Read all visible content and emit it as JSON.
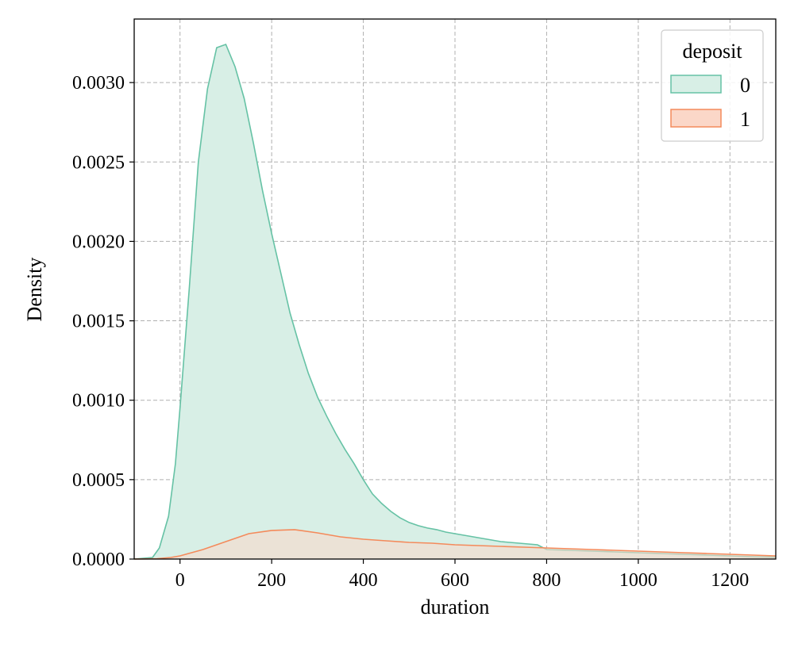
{
  "chart_data": {
    "type": "area",
    "title": "",
    "xlabel": "duration",
    "ylabel": "Density",
    "xlim": [
      -100,
      1300
    ],
    "ylim": [
      0,
      0.0034
    ],
    "xticks": [
      0,
      200,
      400,
      600,
      800,
      1000,
      1200
    ],
    "xtick_labels": [
      "0",
      "200",
      "400",
      "600",
      "800",
      "1000",
      "1200"
    ],
    "yticks": [
      0.0,
      0.0005,
      0.001,
      0.0015,
      0.002,
      0.0025,
      0.003
    ],
    "ytick_labels": [
      "0.0000",
      "0.0005",
      "0.0010",
      "0.0015",
      "0.0020",
      "0.0025",
      "0.0030"
    ],
    "grid": true,
    "legend": {
      "title": "deposit",
      "position": "top-right"
    },
    "series": [
      {
        "name": "0",
        "line_color": "#66c2a5",
        "fill_color": "#d8efe6",
        "points": [
          [
            -100,
            0.0
          ],
          [
            -60,
            1e-05
          ],
          [
            -45,
            7e-05
          ],
          [
            -25,
            0.00027
          ],
          [
            -10,
            0.0006
          ],
          [
            0,
            0.00095
          ],
          [
            20,
            0.0017
          ],
          [
            40,
            0.0025
          ],
          [
            60,
            0.00296
          ],
          [
            80,
            0.00322
          ],
          [
            100,
            0.00324
          ],
          [
            120,
            0.0031
          ],
          [
            140,
            0.0029
          ],
          [
            160,
            0.00262
          ],
          [
            180,
            0.00232
          ],
          [
            200,
            0.00205
          ],
          [
            220,
            0.0018
          ],
          [
            240,
            0.00155
          ],
          [
            260,
            0.00135
          ],
          [
            280,
            0.00117
          ],
          [
            300,
            0.00102
          ],
          [
            320,
            0.0009
          ],
          [
            340,
            0.00079
          ],
          [
            360,
            0.00069
          ],
          [
            380,
            0.0006
          ],
          [
            400,
            0.0005
          ],
          [
            420,
            0.00041
          ],
          [
            440,
            0.00035
          ],
          [
            460,
            0.0003
          ],
          [
            480,
            0.00026
          ],
          [
            500,
            0.00023
          ],
          [
            520,
            0.00021
          ],
          [
            540,
            0.000195
          ],
          [
            560,
            0.000185
          ],
          [
            580,
            0.00017
          ],
          [
            600,
            0.00016
          ],
          [
            620,
            0.00015
          ],
          [
            640,
            0.00014
          ],
          [
            660,
            0.00013
          ],
          [
            680,
            0.00012
          ],
          [
            700,
            0.00011
          ],
          [
            740,
            0.0001
          ],
          [
            780,
            9e-05
          ],
          [
            800,
            6e-05
          ],
          [
            850,
            5.5e-05
          ],
          [
            900,
            5e-05
          ],
          [
            950,
            4.5e-05
          ],
          [
            1000,
            4e-05
          ],
          [
            1050,
            3.5e-05
          ],
          [
            1100,
            3e-05
          ],
          [
            1150,
            2.5e-05
          ],
          [
            1200,
            2e-05
          ],
          [
            1250,
            1.5e-05
          ],
          [
            1300,
            1.2e-05
          ]
        ]
      },
      {
        "name": "1",
        "line_color": "#f48a5b",
        "fill_color": "#fbd7c8",
        "points": [
          [
            -100,
            0.0
          ],
          [
            -50,
            2e-06
          ],
          [
            -20,
            1e-05
          ],
          [
            0,
            2e-05
          ],
          [
            50,
            6e-05
          ],
          [
            100,
            0.00011
          ],
          [
            150,
            0.00016
          ],
          [
            200,
            0.00018
          ],
          [
            250,
            0.000185
          ],
          [
            300,
            0.000165
          ],
          [
            350,
            0.00014
          ],
          [
            400,
            0.000125
          ],
          [
            450,
            0.000115
          ],
          [
            500,
            0.000105
          ],
          [
            550,
            0.0001
          ],
          [
            600,
            9e-05
          ],
          [
            650,
            8.5e-05
          ],
          [
            700,
            8e-05
          ],
          [
            750,
            7.5e-05
          ],
          [
            800,
            7e-05
          ],
          [
            850,
            6.5e-05
          ],
          [
            900,
            6e-05
          ],
          [
            950,
            5.5e-05
          ],
          [
            1000,
            5e-05
          ],
          [
            1050,
            4.5e-05
          ],
          [
            1100,
            4e-05
          ],
          [
            1150,
            3.5e-05
          ],
          [
            1200,
            3e-05
          ],
          [
            1250,
            2.5e-05
          ],
          [
            1300,
            2e-05
          ]
        ]
      }
    ]
  }
}
